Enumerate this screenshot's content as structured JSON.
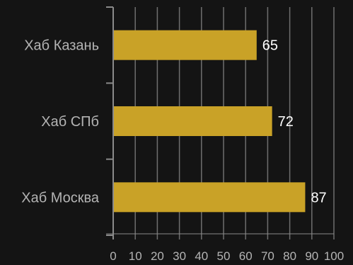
{
  "chart_data": {
    "type": "bar",
    "orientation": "horizontal",
    "categories": [
      "Хаб Казань",
      "Хаб СПб",
      "Хаб Москва"
    ],
    "values": [
      65,
      72,
      87
    ],
    "data_labels": [
      "65",
      "72",
      "87"
    ],
    "title": "",
    "xlabel": "",
    "ylabel": "",
    "xlim": [
      0,
      100
    ],
    "xticks": [
      "0",
      "10",
      "20",
      "30",
      "40",
      "50",
      "60",
      "70",
      "80",
      "90",
      "100"
    ],
    "grid": true,
    "grid_axis": "x",
    "legend": "none",
    "colors": {
      "background": "#141414",
      "bar": "#c9a227",
      "grid": "#6e6e6e",
      "axis": "#8a8a8a",
      "tick_text": "#b4b4b4",
      "data_label_text": "#ffffff"
    }
  }
}
